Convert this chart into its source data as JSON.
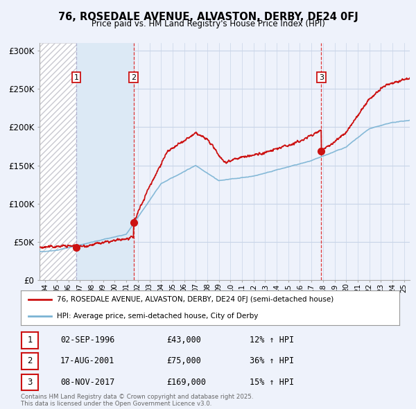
{
  "title": "76, ROSEDALE AVENUE, ALVASTON, DERBY, DE24 0FJ",
  "subtitle": "Price paid vs. HM Land Registry's House Price Index (HPI)",
  "ylim": [
    0,
    310000
  ],
  "yticks": [
    0,
    50000,
    100000,
    150000,
    200000,
    250000,
    300000
  ],
  "ytick_labels": [
    "£0",
    "£50K",
    "£100K",
    "£150K",
    "£200K",
    "£250K",
    "£300K"
  ],
  "sale_dates": [
    1996.67,
    2001.63,
    2017.85
  ],
  "sale_prices": [
    43000,
    75000,
    169000
  ],
  "sale_labels": [
    "1",
    "2",
    "3"
  ],
  "hpi_color": "#7ab3d4",
  "price_color": "#cc1111",
  "vline1_color": "#aaaaaa",
  "vline23_color": "#dd2222",
  "hatch_color": "#c8c8d0",
  "shaded_color": "#dce9f5",
  "background_color": "#eef2fb",
  "plot_bg_color": "#eef2fb",
  "grid_color": "#c8d4e8",
  "legend_line1": "76, ROSEDALE AVENUE, ALVASTON, DERBY, DE24 0FJ (semi-detached house)",
  "legend_line2": "HPI: Average price, semi-detached house, City of Derby",
  "table_data": [
    [
      "1",
      "02-SEP-1996",
      "£43,000",
      "12% ↑ HPI"
    ],
    [
      "2",
      "17-AUG-2001",
      "£75,000",
      "36% ↑ HPI"
    ],
    [
      "3",
      "08-NOV-2017",
      "£169,000",
      "15% ↑ HPI"
    ]
  ],
  "footnote": "Contains HM Land Registry data © Crown copyright and database right 2025.\nThis data is licensed under the Open Government Licence v3.0.",
  "xmin": 1993.5,
  "xmax": 2025.5
}
